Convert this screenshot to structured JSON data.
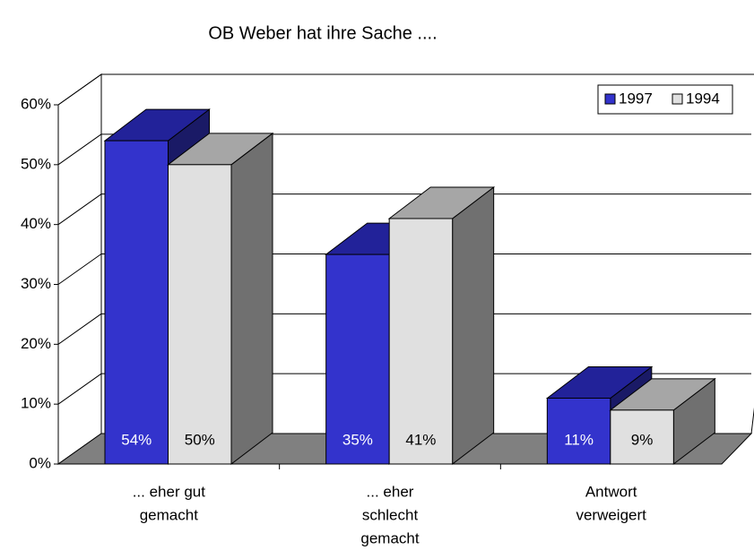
{
  "chart_data": {
    "type": "bar3d",
    "title": "OB Weber hat ihre Sache ....",
    "categories": [
      [
        "... eher gut",
        "gemacht"
      ],
      [
        "... eher",
        "schlecht",
        "gemacht"
      ],
      [
        "Antwort",
        "verweigert"
      ]
    ],
    "series": [
      {
        "name": "1997",
        "color": "#3333cc",
        "values": [
          54,
          35,
          11
        ],
        "value_labels": [
          "54%",
          "35%",
          "11%"
        ]
      },
      {
        "name": "1994",
        "color": "#e0e0e0",
        "values": [
          50,
          41,
          9
        ],
        "value_labels": [
          "50%",
          "41%",
          "9%"
        ]
      }
    ],
    "ylim": [
      0,
      60
    ],
    "yticks": [
      {
        "value": 0,
        "label": "0%"
      },
      {
        "value": 10,
        "label": "10%"
      },
      {
        "value": 20,
        "label": "20%"
      },
      {
        "value": 30,
        "label": "30%"
      },
      {
        "value": 40,
        "label": "40%"
      },
      {
        "value": 50,
        "label": "50%"
      },
      {
        "value": 60,
        "label": "60%"
      }
    ],
    "grid": true,
    "legend": "top-right"
  }
}
